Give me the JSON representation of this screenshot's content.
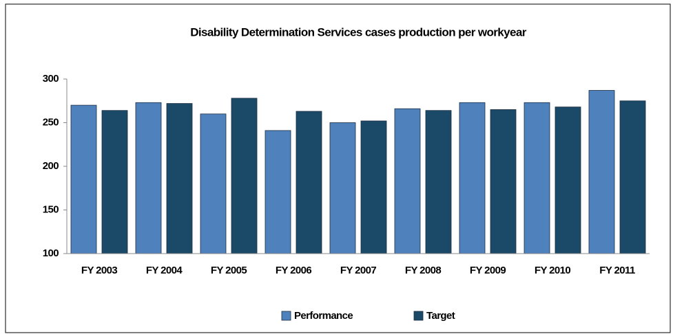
{
  "chart_data": {
    "type": "bar",
    "title": "Disability Determination Services cases production per workyear",
    "categories": [
      "FY 2003",
      "FY 2004",
      "FY 2005",
      "FY 2006",
      "FY 2007",
      "FY 2008",
      "FY 2009",
      "FY 2010",
      "FY 2011"
    ],
    "series": [
      {
        "name": "Performance",
        "color": "#4f81bd",
        "values": [
          270,
          273,
          260,
          241,
          250,
          266,
          273,
          273,
          287
        ]
      },
      {
        "name": "Target",
        "color": "#1b4a68",
        "values": [
          264,
          272,
          278,
          263,
          252,
          264,
          265,
          268,
          275
        ]
      }
    ],
    "ylim": [
      100,
      300
    ],
    "yticks": [
      100,
      150,
      200,
      250,
      300
    ],
    "grid": false,
    "legend": "bottom"
  }
}
